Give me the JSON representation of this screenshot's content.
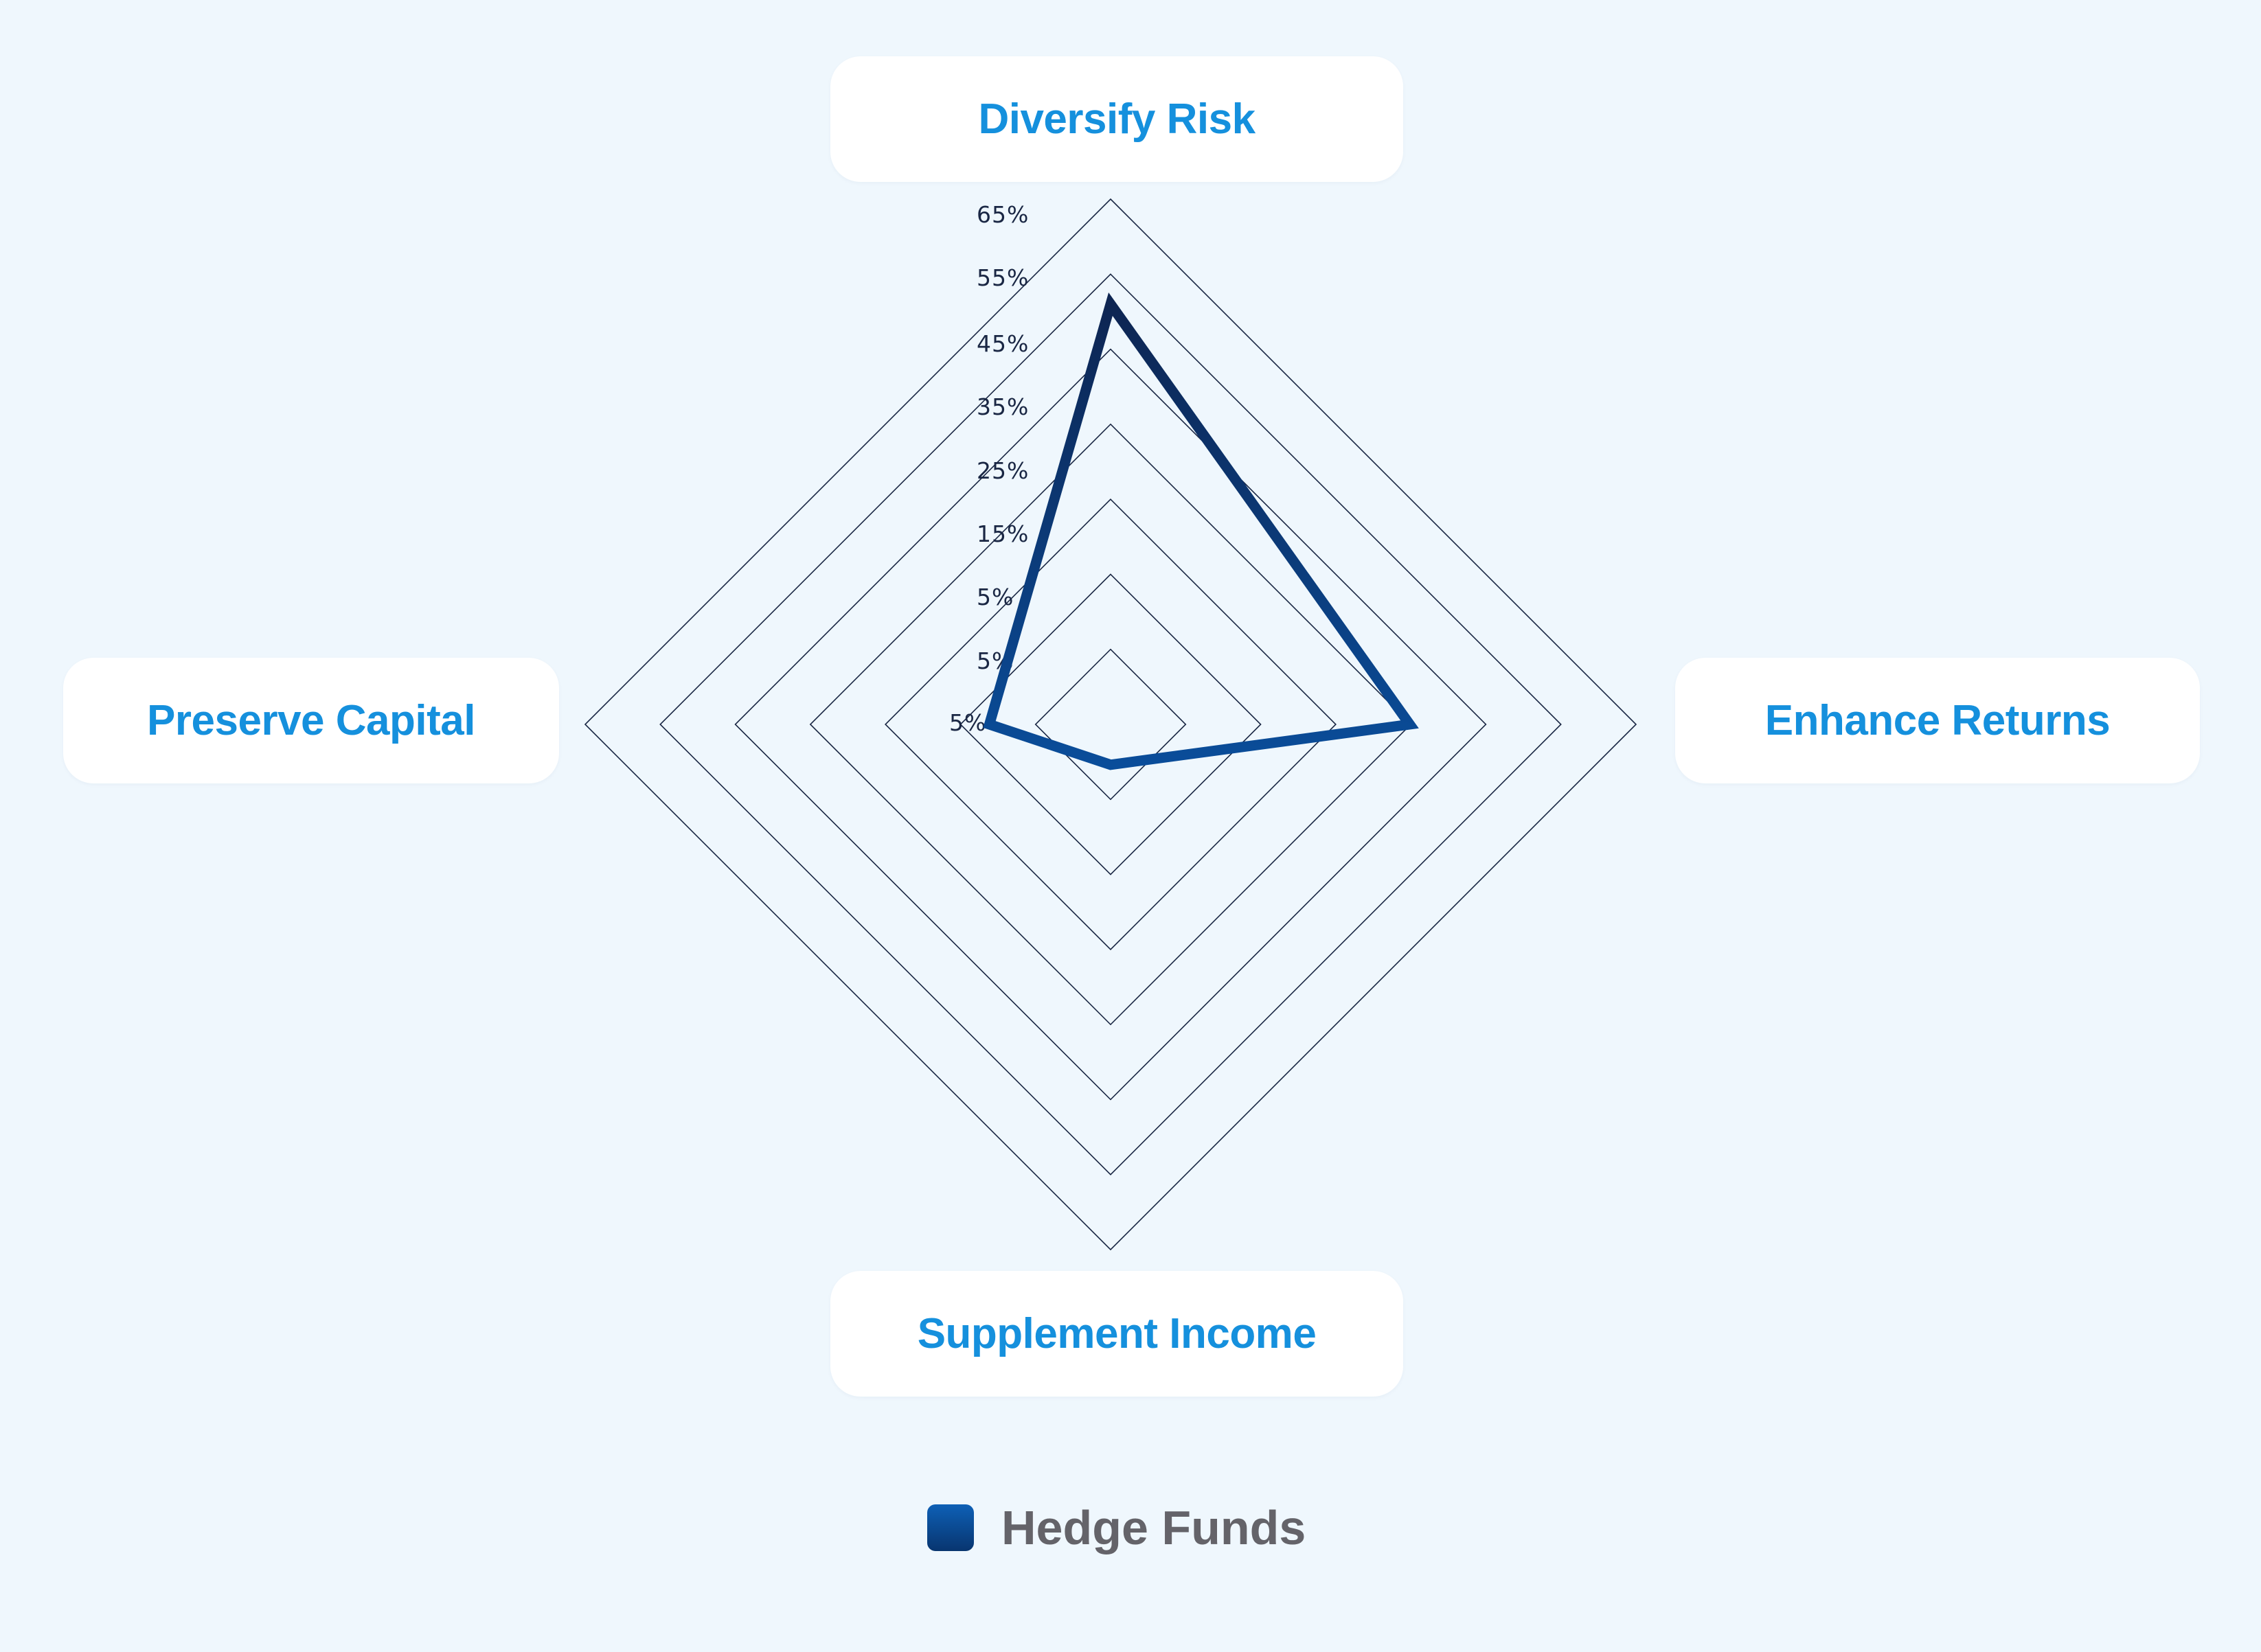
{
  "chart_data": {
    "type": "radar",
    "axes": [
      "Diversify Risk",
      "Enhance Returns",
      "Supplement Income",
      "Preserve Capital"
    ],
    "tick_labels": [
      "5%",
      "5%",
      "5%",
      "15%",
      "25%",
      "35%",
      "45%",
      "55%",
      "65%"
    ],
    "series": [
      {
        "name": "Hedge Funds",
        "values": [
          52,
          37,
          5,
          15
        ]
      }
    ],
    "rmax": 65,
    "legend_position": "bottom"
  },
  "legend": {
    "label": "Hedge Funds"
  },
  "colors": {
    "background": "#eff7fd",
    "axis_label": "#1590dd",
    "series_line_top": "#0d2552",
    "series_line_bottom": "#0a4c96",
    "grid": "#1a2744"
  }
}
